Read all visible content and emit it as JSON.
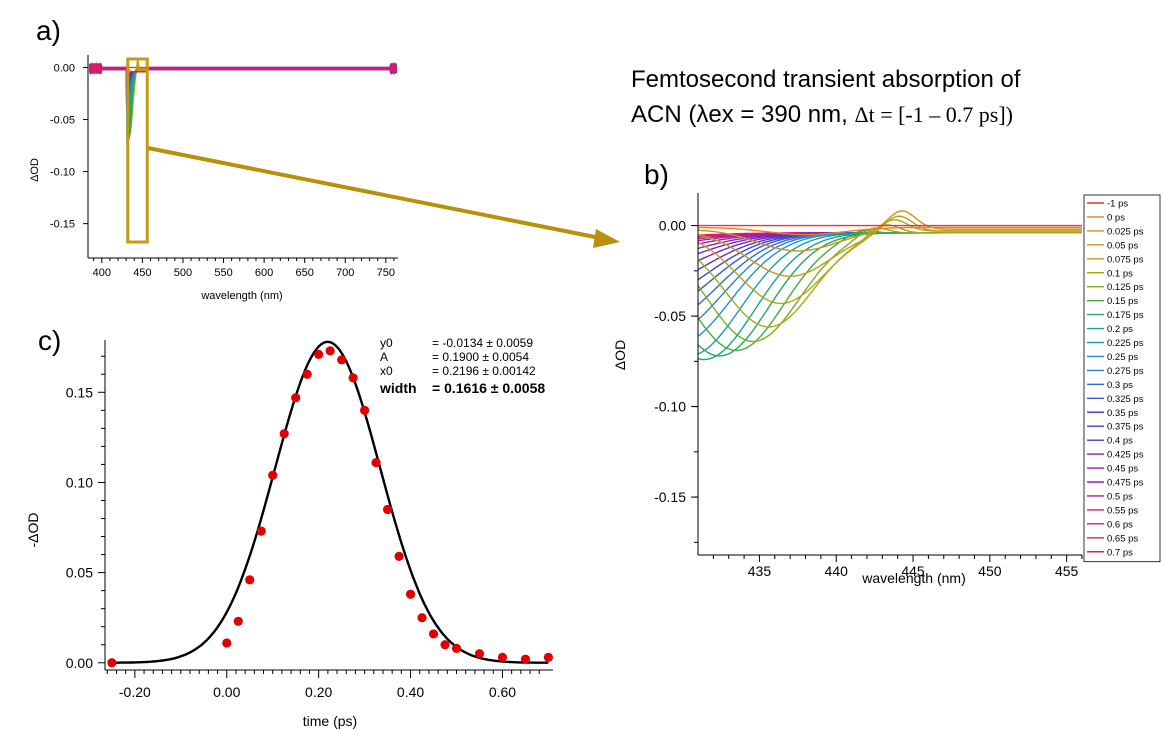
{
  "figure": {
    "caption_line1": "Femtosecond transient absorption of",
    "caption_line2_a": "ACN (",
    "caption_line2_b": "λex = 390 nm, ",
    "caption_line2_c": "Δt = [-1 – 0.7 ps])",
    "colors": {
      "arrow": "#b8900a",
      "highlight": "#c49a14",
      "fit_line": "#000000",
      "points": "#e00000"
    }
  },
  "chart_data": [
    {
      "id": "a",
      "panel_label": "a)",
      "type": "line",
      "xlabel": "wavelength (nm)",
      "ylabel": "ΔOD",
      "xlim": [
        383,
        765
      ],
      "ylim": [
        -0.183,
        0.012
      ],
      "xticks": [
        400,
        450,
        500,
        550,
        600,
        650,
        700,
        750
      ],
      "yticks": [
        {
          "v": 0.0,
          "label": "0.00"
        },
        {
          "v": -0.05,
          "label": "-0.05"
        },
        {
          "v": -0.1,
          "label": "-0.10"
        },
        {
          "v": -0.15,
          "label": "-0.15"
        }
      ],
      "highlight_range_nm": [
        432,
        456
      ],
      "min_value": -0.175,
      "min_at_nm": 444
    },
    {
      "id": "b",
      "panel_label": "b)",
      "type": "line",
      "xlabel": "wavelength (nm)",
      "ylabel": "ΔOD",
      "xlim": [
        431,
        456
      ],
      "ylim": [
        -0.182,
        0.018
      ],
      "xticks": [
        435,
        440,
        445,
        450,
        455
      ],
      "yticks": [
        {
          "v": 0.0,
          "label": "0.00"
        },
        {
          "v": -0.05,
          "label": "-0.05"
        },
        {
          "v": -0.1,
          "label": "-0.10"
        },
        {
          "v": -0.15,
          "label": "-0.15"
        }
      ],
      "legend_position": "right",
      "series": [
        {
          "name": "-1 ps",
          "delay": -1,
          "color": "#ff2a2a",
          "depth": 0.0,
          "center": 444.0,
          "width": 2.2,
          "offset": 0.0
        },
        {
          "name": "0 ps",
          "delay": 0,
          "color": "#e8841a",
          "depth": 0.004,
          "center": 438.0,
          "width": 2.5,
          "offset": -0.001
        },
        {
          "name": "0.025 ps",
          "delay": 0.025,
          "color": "#d0901c",
          "depth": 0.012,
          "center": 437.5,
          "width": 2.6,
          "offset": -0.002
        },
        {
          "name": "0.05 ps",
          "delay": 0.05,
          "color": "#c09c18",
          "depth": 0.025,
          "center": 437.0,
          "width": 2.7,
          "offset": -0.003
        },
        {
          "name": "0.075 ps",
          "delay": 0.075,
          "color": "#b8a416",
          "depth": 0.04,
          "center": 436.4,
          "width": 2.8,
          "offset": -0.003
        },
        {
          "name": "0.1 ps",
          "delay": 0.1,
          "color": "#a8a818",
          "depth": 0.052,
          "center": 435.6,
          "width": 2.9,
          "offset": -0.004
        },
        {
          "name": "0.125 ps",
          "delay": 0.125,
          "color": "#7cac1e",
          "depth": 0.06,
          "center": 434.6,
          "width": 3.0,
          "offset": -0.004
        },
        {
          "name": "0.15 ps",
          "delay": 0.15,
          "color": "#46ac3a",
          "depth": 0.065,
          "center": 433.5,
          "width": 3.1,
          "offset": -0.004
        },
        {
          "name": "0.175 ps",
          "delay": 0.175,
          "color": "#22a860",
          "depth": 0.068,
          "center": 432.4,
          "width": 3.2,
          "offset": -0.004
        },
        {
          "name": "0.2 ps",
          "delay": 0.2,
          "color": "#1aa48a",
          "depth": 0.07,
          "center": 431.4,
          "width": 3.3,
          "offset": -0.004
        },
        {
          "name": "0.225 ps",
          "delay": 0.225,
          "color": "#1a9cb0",
          "depth": 0.068,
          "center": 430.4,
          "width": 3.4,
          "offset": -0.004
        },
        {
          "name": "0.25 ps",
          "delay": 0.25,
          "color": "#2090d0",
          "depth": 0.062,
          "center": 429.6,
          "width": 3.5,
          "offset": -0.004
        },
        {
          "name": "0.275 ps",
          "delay": 0.275,
          "color": "#2a80d8",
          "depth": 0.056,
          "center": 429.0,
          "width": 3.6,
          "offset": -0.004
        },
        {
          "name": "0.3 ps",
          "delay": 0.3,
          "color": "#2c6cd4",
          "depth": 0.05,
          "center": 428.5,
          "width": 3.7,
          "offset": -0.004
        },
        {
          "name": "0.325 ps",
          "delay": 0.325,
          "color": "#3456d0",
          "depth": 0.044,
          "center": 428.0,
          "width": 3.8,
          "offset": -0.004
        },
        {
          "name": "0.35 ps",
          "delay": 0.35,
          "color": "#4444cc",
          "depth": 0.038,
          "center": 427.6,
          "width": 3.9,
          "offset": -0.004
        },
        {
          "name": "0.375 ps",
          "delay": 0.375,
          "color": "#5636c8",
          "depth": 0.032,
          "center": 427.2,
          "width": 4.0,
          "offset": -0.004
        },
        {
          "name": "0.4 ps",
          "delay": 0.4,
          "color": "#6a2cc4",
          "depth": 0.026,
          "center": 426.8,
          "width": 4.1,
          "offset": -0.004
        },
        {
          "name": "0.425 ps",
          "delay": 0.425,
          "color": "#7e24c0",
          "depth": 0.021,
          "center": 426.4,
          "width": 4.2,
          "offset": -0.004
        },
        {
          "name": "0.45 ps",
          "delay": 0.45,
          "color": "#9020b8",
          "depth": 0.017,
          "center": 426.0,
          "width": 4.3,
          "offset": -0.004
        },
        {
          "name": "0.475 ps",
          "delay": 0.475,
          "color": "#a01cac",
          "depth": 0.013,
          "center": 425.6,
          "width": 4.4,
          "offset": -0.004
        },
        {
          "name": "0.5 ps",
          "delay": 0.5,
          "color": "#b01aa0",
          "depth": 0.01,
          "center": 425.2,
          "width": 4.5,
          "offset": -0.004
        },
        {
          "name": "0.55 ps",
          "delay": 0.55,
          "color": "#c01a90",
          "depth": 0.008,
          "center": 424.8,
          "width": 4.6,
          "offset": -0.004
        },
        {
          "name": "0.6 ps",
          "delay": 0.6,
          "color": "#cc1a80",
          "depth": 0.006,
          "center": 424.4,
          "width": 4.7,
          "offset": -0.004
        },
        {
          "name": "0.65 ps",
          "delay": 0.65,
          "color": "#d81a70",
          "depth": 0.005,
          "center": 424.0,
          "width": 4.8,
          "offset": -0.004
        },
        {
          "name": "0.7 ps",
          "delay": 0.7,
          "color": "#e41a60",
          "depth": 0.004,
          "center": 423.6,
          "width": 4.9,
          "offset": -0.004
        }
      ]
    },
    {
      "id": "c",
      "panel_label": "c)",
      "type": "scatter",
      "xlabel": "time (ps)",
      "ylabel": "-ΔOD",
      "xlim": [
        -0.265,
        0.71
      ],
      "ylim": [
        -0.004,
        0.179
      ],
      "xticks": [
        {
          "v": -0.2,
          "label": "-0.20"
        },
        {
          "v": 0.0,
          "label": "0.00"
        },
        {
          "v": 0.2,
          "label": "0.20"
        },
        {
          "v": 0.4,
          "label": "0.40"
        },
        {
          "v": 0.6,
          "label": "0.60"
        }
      ],
      "yticks": [
        {
          "v": 0.0,
          "label": "0.00"
        },
        {
          "v": 0.05,
          "label": "0.05"
        },
        {
          "v": 0.1,
          "label": "0.10"
        },
        {
          "v": 0.15,
          "label": "0.15"
        }
      ],
      "points": [
        [
          -0.25,
          0.0
        ],
        [
          0.0,
          0.011
        ],
        [
          0.025,
          0.023
        ],
        [
          0.05,
          0.046
        ],
        [
          0.075,
          0.073
        ],
        [
          0.1,
          0.104
        ],
        [
          0.125,
          0.127
        ],
        [
          0.15,
          0.147
        ],
        [
          0.175,
          0.16
        ],
        [
          0.2,
          0.171
        ],
        [
          0.225,
          0.173
        ],
        [
          0.25,
          0.168
        ],
        [
          0.275,
          0.158
        ],
        [
          0.3,
          0.14
        ],
        [
          0.325,
          0.111
        ],
        [
          0.35,
          0.085
        ],
        [
          0.375,
          0.059
        ],
        [
          0.4,
          0.038
        ],
        [
          0.425,
          0.025
        ],
        [
          0.45,
          0.016
        ],
        [
          0.475,
          0.01
        ],
        [
          0.5,
          0.008
        ],
        [
          0.55,
          0.005
        ],
        [
          0.6,
          0.003
        ],
        [
          0.65,
          0.002
        ],
        [
          0.7,
          0.003
        ]
      ],
      "fit": {
        "function": "gauss",
        "line_y0": 0.0,
        "line_A": 0.178,
        "line_x0": 0.2196,
        "line_sigma": 0.1143,
        "params": [
          {
            "name": "y0",
            "value": "= -0.0134 ± 0.0059",
            "bold": false
          },
          {
            "name": "A",
            "value": "= 0.1900 ± 0.0054",
            "bold": false
          },
          {
            "name": "x0",
            "value": "= 0.2196 ± 0.00142",
            "bold": false
          },
          {
            "name": "width",
            "value": "= 0.1616 ± 0.0058",
            "bold": true
          }
        ]
      }
    }
  ]
}
